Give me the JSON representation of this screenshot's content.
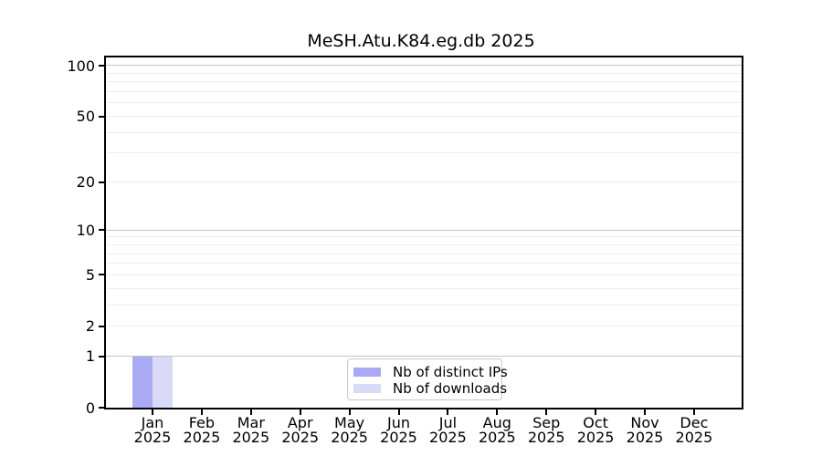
{
  "chart_data": {
    "type": "bar",
    "title": "MeSH.Atu.K84.eg.db 2025",
    "x_tick_months": [
      "Jan",
      "Feb",
      "Mar",
      "Apr",
      "May",
      "Jun",
      "Jul",
      "Aug",
      "Sep",
      "Oct",
      "Nov",
      "Dec"
    ],
    "x_tick_year": "2025",
    "y_ticks": [
      0,
      1,
      2,
      5,
      10,
      20,
      50,
      100
    ],
    "y_scale": "log10(1+y)",
    "y_axis_max": 115,
    "grid": {
      "major_values": [
        1,
        10,
        100
      ],
      "minor_values": [
        2,
        3,
        4,
        5,
        6,
        7,
        8,
        9,
        20,
        30,
        40,
        50,
        60,
        70,
        80,
        90
      ],
      "major_color": "#c2c2c2",
      "minor_color": "#ededed"
    },
    "series": [
      {
        "name": "Nb of distinct IPs",
        "color": "#a9a9f4",
        "values": [
          1,
          0,
          0,
          0,
          0,
          0,
          0,
          0,
          0,
          0,
          0,
          0
        ]
      },
      {
        "name": "Nb of downloads",
        "color": "#d9d9f8",
        "values": [
          1,
          0,
          0,
          0,
          0,
          0,
          0,
          0,
          0,
          0,
          0,
          0
        ]
      }
    ],
    "legend": {
      "position": "inside-bottom-center"
    }
  }
}
